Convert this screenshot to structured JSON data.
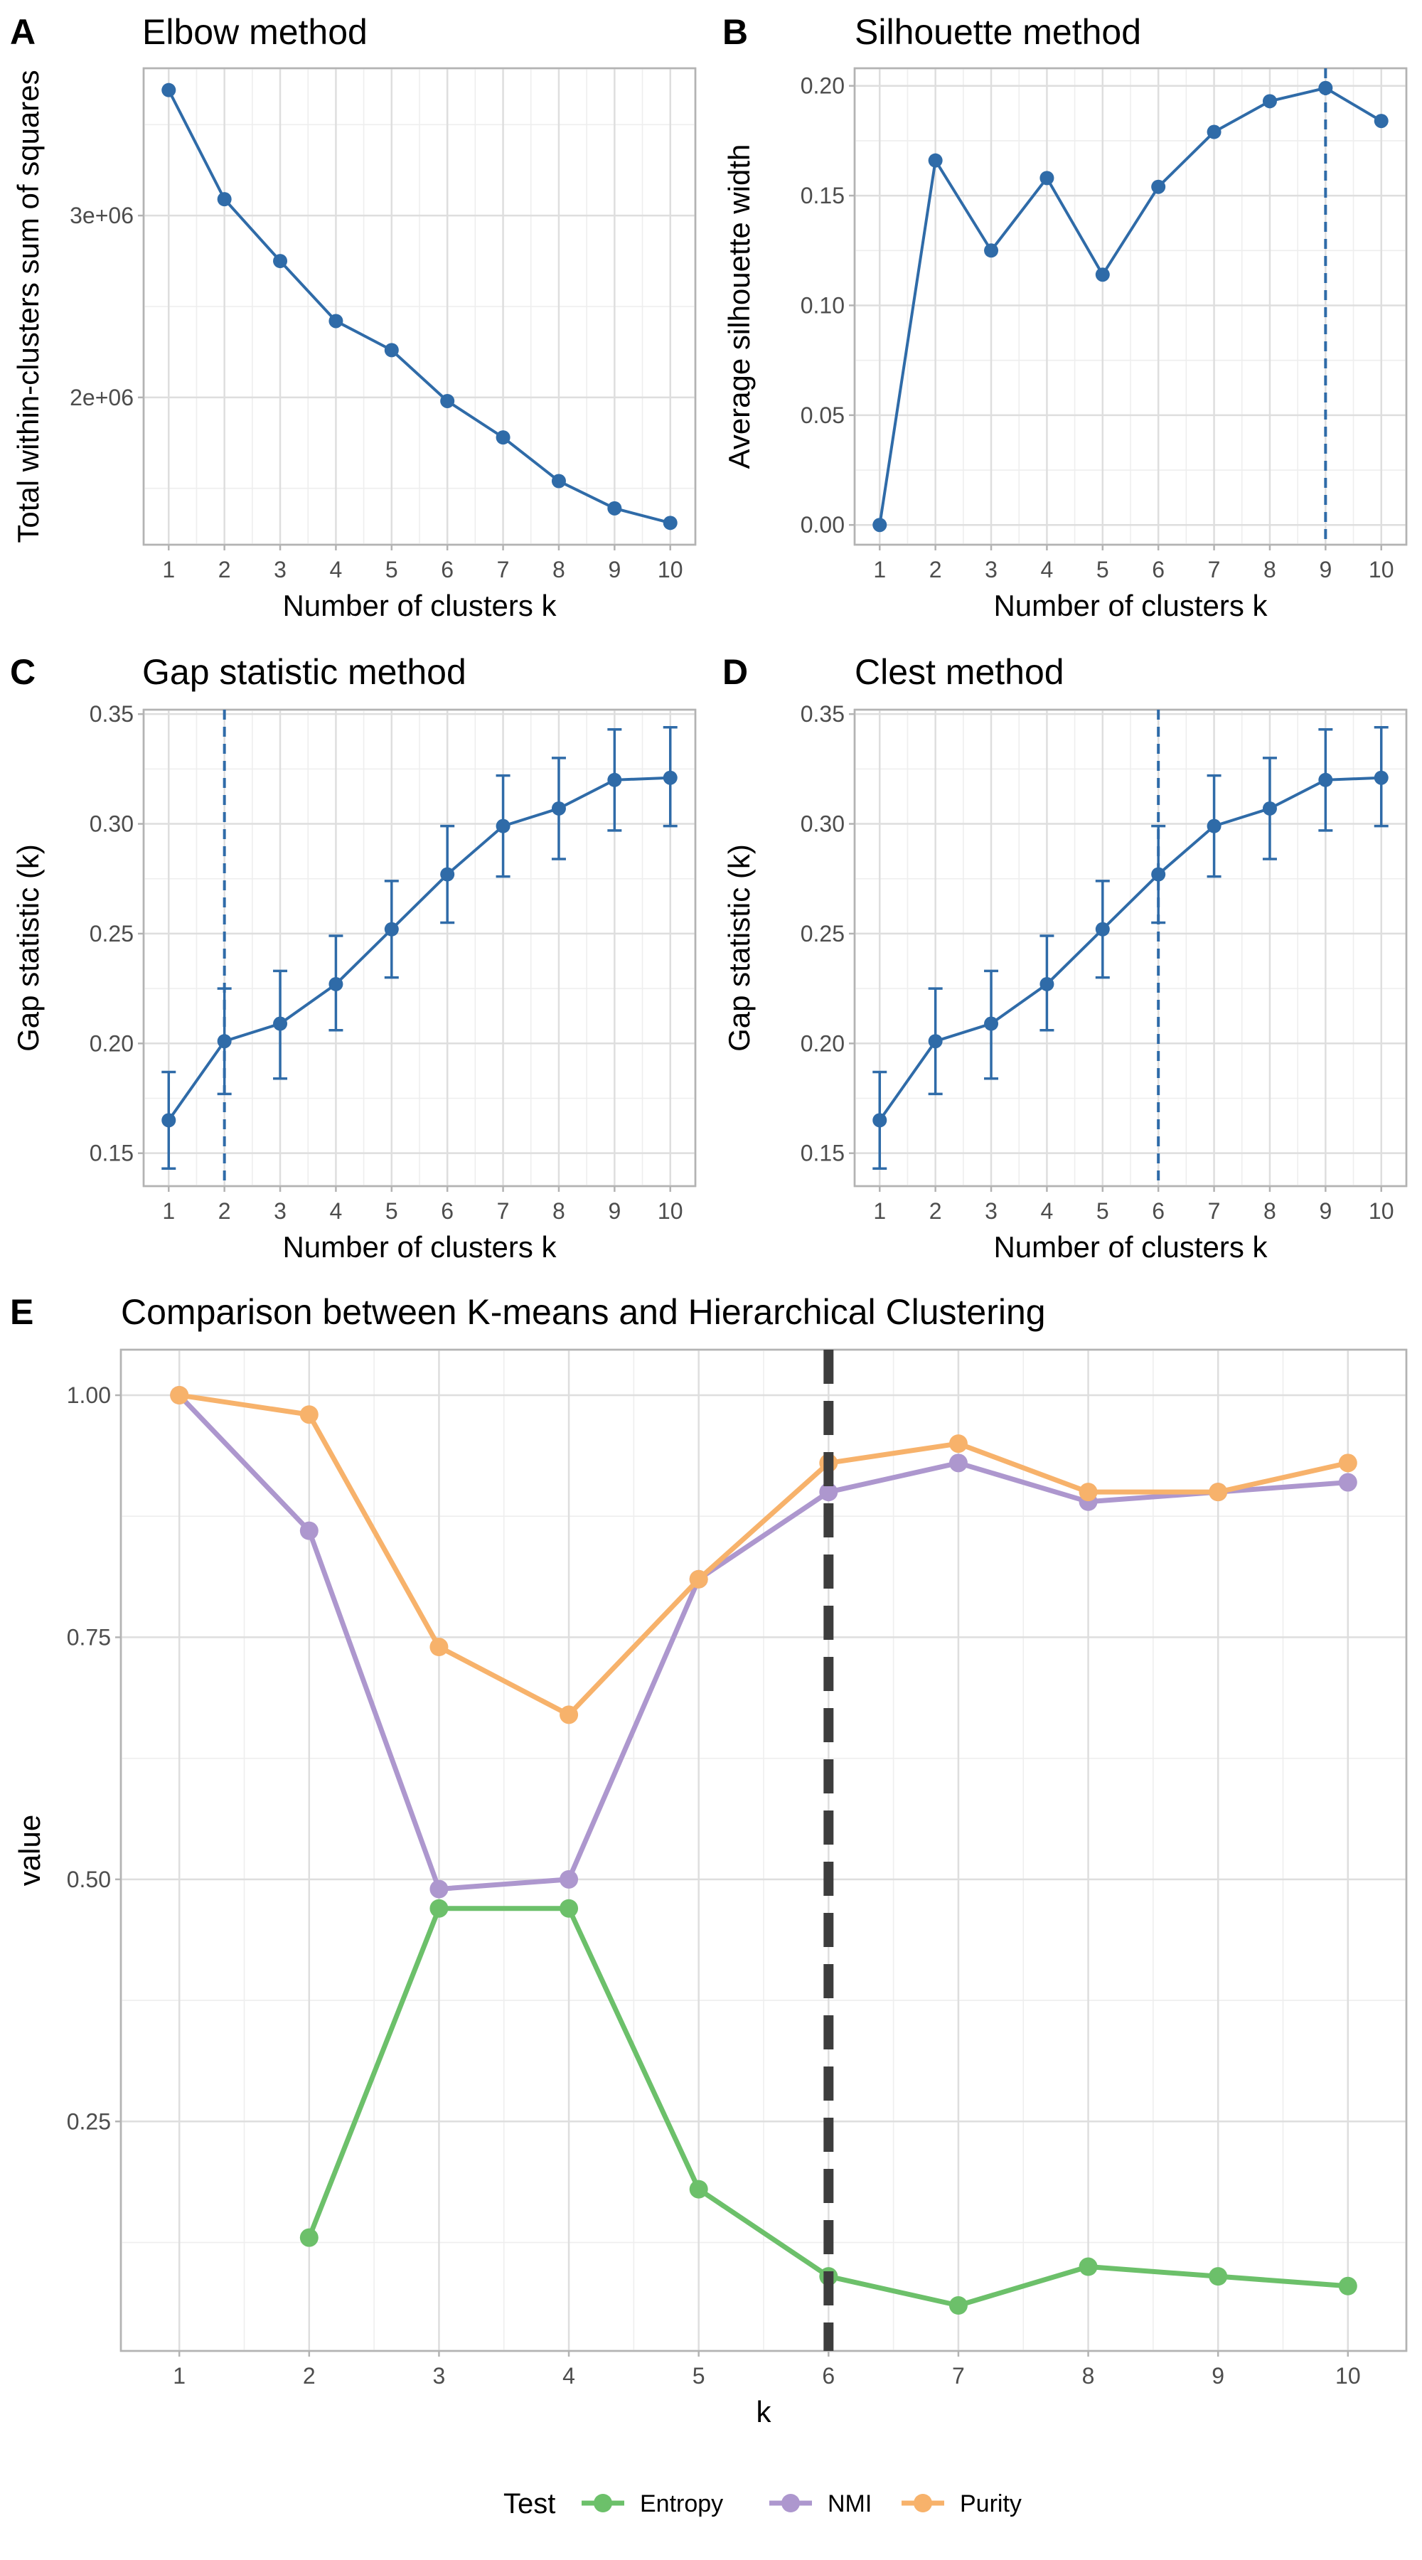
{
  "colors": {
    "blue": "#2F6BA8",
    "entropy": "#6CC06A",
    "nmi": "#AD97CE",
    "purity": "#F7B26B",
    "dashed_dark": "#3d3d3d"
  },
  "chart_data": [
    {
      "id": "A",
      "type": "line",
      "letter": "A",
      "title": "Elbow method",
      "xlabel": "Number of clusters k",
      "ylabel": "Total within-clusters sum of squares",
      "x": [
        1,
        2,
        3,
        4,
        5,
        6,
        7,
        8,
        9,
        10
      ],
      "y": [
        3690000,
        3090000,
        2750000,
        2420000,
        2260000,
        1980000,
        1780000,
        1540000,
        1390000,
        1310000
      ],
      "xlim": [
        0.55,
        10.45
      ],
      "ylim": [
        1190000,
        3810000
      ],
      "yticks": [
        2000000,
        3000000
      ],
      "ytick_labels": [
        "2e+06",
        "3e+06"
      ],
      "xticks": [
        1,
        2,
        3,
        4,
        5,
        6,
        7,
        8,
        9,
        10
      ],
      "vline": null,
      "grid": true
    },
    {
      "id": "B",
      "type": "line",
      "letter": "B",
      "title": "Silhouette method",
      "xlabel": "Number of clusters k",
      "ylabel": "Average silhouette width",
      "x": [
        1,
        2,
        3,
        4,
        5,
        6,
        7,
        8,
        9,
        10
      ],
      "y": [
        0.0,
        0.166,
        0.125,
        0.158,
        0.114,
        0.154,
        0.179,
        0.193,
        0.199,
        0.184
      ],
      "xlim": [
        0.55,
        10.45
      ],
      "ylim": [
        -0.009,
        0.208
      ],
      "yticks": [
        0.0,
        0.05,
        0.1,
        0.15,
        0.2
      ],
      "ytick_labels": [
        "0.00",
        "0.05",
        "0.10",
        "0.15",
        "0.20"
      ],
      "xticks": [
        1,
        2,
        3,
        4,
        5,
        6,
        7,
        8,
        9,
        10
      ],
      "vline": 9,
      "grid": true
    },
    {
      "id": "C",
      "type": "line",
      "letter": "C",
      "title": "Gap statistic method",
      "xlabel": "Number of clusters k",
      "ylabel": "Gap statistic (k)",
      "x": [
        1,
        2,
        3,
        4,
        5,
        6,
        7,
        8,
        9,
        10
      ],
      "y": [
        0.165,
        0.201,
        0.209,
        0.227,
        0.252,
        0.277,
        0.299,
        0.307,
        0.32,
        0.321
      ],
      "ymin": [
        0.143,
        0.177,
        0.184,
        0.206,
        0.23,
        0.255,
        0.276,
        0.284,
        0.297,
        0.299
      ],
      "ymax": [
        0.187,
        0.225,
        0.233,
        0.249,
        0.274,
        0.299,
        0.322,
        0.33,
        0.343,
        0.344
      ],
      "xlim": [
        0.55,
        10.45
      ],
      "ylim": [
        0.135,
        0.352
      ],
      "yticks": [
        0.15,
        0.2,
        0.25,
        0.3,
        0.35
      ],
      "ytick_labels": [
        "0.15",
        "0.20",
        "0.25",
        "0.30",
        "0.35"
      ],
      "xticks": [
        1,
        2,
        3,
        4,
        5,
        6,
        7,
        8,
        9,
        10
      ],
      "vline": 2,
      "grid": true
    },
    {
      "id": "D",
      "type": "line",
      "letter": "D",
      "title": "Clest method",
      "xlabel": "Number of clusters k",
      "ylabel": "Gap statistic (k)",
      "x": [
        1,
        2,
        3,
        4,
        5,
        6,
        7,
        8,
        9,
        10
      ],
      "y": [
        0.165,
        0.201,
        0.209,
        0.227,
        0.252,
        0.277,
        0.299,
        0.307,
        0.32,
        0.321
      ],
      "ymin": [
        0.143,
        0.177,
        0.184,
        0.206,
        0.23,
        0.255,
        0.276,
        0.284,
        0.297,
        0.299
      ],
      "ymax": [
        0.187,
        0.225,
        0.233,
        0.249,
        0.274,
        0.299,
        0.322,
        0.33,
        0.343,
        0.344
      ],
      "xlim": [
        0.55,
        10.45
      ],
      "ylim": [
        0.135,
        0.352
      ],
      "yticks": [
        0.15,
        0.2,
        0.25,
        0.3,
        0.35
      ],
      "ytick_labels": [
        "0.15",
        "0.20",
        "0.25",
        "0.30",
        "0.35"
      ],
      "xticks": [
        1,
        2,
        3,
        4,
        5,
        6,
        7,
        8,
        9,
        10
      ],
      "vline": 6,
      "grid": true
    },
    {
      "id": "E",
      "type": "line",
      "letter": "E",
      "title": "Comparison between K-means and Hierarchical Clustering",
      "xlabel": "k",
      "ylabel": "value",
      "x": [
        1,
        2,
        3,
        4,
        5,
        6,
        7,
        8,
        9,
        10
      ],
      "series": [
        {
          "name": "Entropy",
          "color_key": "entropy",
          "values": [
            null,
            0.13,
            0.47,
            0.47,
            0.18,
            0.09,
            0.06,
            0.1,
            0.09,
            0.08
          ]
        },
        {
          "name": "NMI",
          "color_key": "nmi",
          "values": [
            1.0,
            0.86,
            0.49,
            0.5,
            0.81,
            0.9,
            0.93,
            0.89,
            0.9,
            0.91
          ]
        },
        {
          "name": "Purity",
          "color_key": "purity",
          "values": [
            1.0,
            0.98,
            0.74,
            0.67,
            0.81,
            0.93,
            0.95,
            0.9,
            0.9,
            0.93
          ]
        }
      ],
      "xlim": [
        0.55,
        10.45
      ],
      "ylim": [
        0.013,
        1.047
      ],
      "yticks": [
        0.25,
        0.5,
        0.75,
        1.0
      ],
      "ytick_labels": [
        "0.25",
        "0.50",
        "0.75",
        "1.00"
      ],
      "xticks": [
        1,
        2,
        3,
        4,
        5,
        6,
        7,
        8,
        9,
        10
      ],
      "vline": 6,
      "grid": true,
      "legend": {
        "title": "Test",
        "position": "bottom",
        "entries": [
          "Entropy",
          "NMI",
          "Purity"
        ]
      }
    }
  ]
}
